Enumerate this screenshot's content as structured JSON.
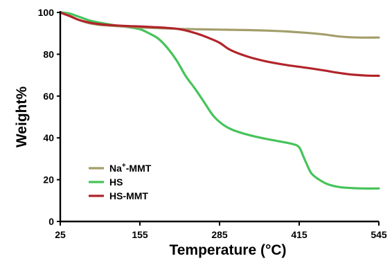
{
  "chart_data": {
    "type": "line",
    "title": "",
    "xlabel": "Temperature (°C)",
    "ylabel": "Weight%",
    "xlim": [
      25,
      545
    ],
    "ylim": [
      0,
      100
    ],
    "x_ticks": [
      25,
      155,
      285,
      415,
      545
    ],
    "y_ticks": [
      0,
      20,
      40,
      60,
      80,
      100
    ],
    "grid": false,
    "legend_position": "bottom-left",
    "series": [
      {
        "name": "Na+-MMT",
        "legend_base": "Na",
        "legend_sup": "+",
        "legend_rest": "-MMT",
        "color": "#a39e6a",
        "x": [
          25,
          40,
          55,
          70,
          85,
          100,
          115,
          130,
          145,
          155,
          185,
          215,
          245,
          285,
          325,
          365,
          395,
          425,
          455,
          480,
          510,
          545
        ],
        "y": [
          100,
          98.5,
          96.5,
          95,
          94.2,
          93.8,
          93.5,
          93.2,
          93,
          92.8,
          92.5,
          92.2,
          92,
          91.8,
          91.6,
          91.3,
          90.9,
          90.3,
          89.5,
          88.5,
          88,
          88
        ]
      },
      {
        "name": "HS",
        "color": "#46c35a",
        "x": [
          25,
          40,
          55,
          75,
          95,
          115,
          135,
          155,
          170,
          185,
          200,
          215,
          230,
          245,
          260,
          275,
          290,
          305,
          325,
          345,
          365,
          385,
          405,
          415,
          422,
          428,
          435,
          445,
          460,
          480,
          500,
          520,
          545
        ],
        "y": [
          100,
          99.5,
          98,
          96,
          94.8,
          93.8,
          93,
          92,
          90,
          87.5,
          83,
          77,
          69.5,
          63.5,
          57,
          50.5,
          46.5,
          44,
          42,
          40.5,
          39.3,
          38.2,
          37,
          35.5,
          31,
          27,
          23,
          20.5,
          18,
          16.5,
          16,
          15.8,
          15.8
        ]
      },
      {
        "name": "HS-MMT",
        "color": "#b1242a",
        "x": [
          25,
          40,
          55,
          75,
          95,
          115,
          135,
          155,
          175,
          195,
          215,
          235,
          255,
          270,
          285,
          300,
          315,
          335,
          355,
          375,
          395,
          415,
          435,
          455,
          475,
          500,
          525,
          545
        ],
        "y": [
          100,
          98.3,
          96.5,
          95,
          94.2,
          93.8,
          93.5,
          93.3,
          93,
          92.7,
          92.2,
          91,
          89.2,
          87.5,
          85.5,
          82.5,
          80.5,
          78.5,
          77,
          75.8,
          74.8,
          74,
          73.2,
          72.3,
          71.3,
          70.3,
          69.8,
          69.7
        ]
      }
    ]
  }
}
